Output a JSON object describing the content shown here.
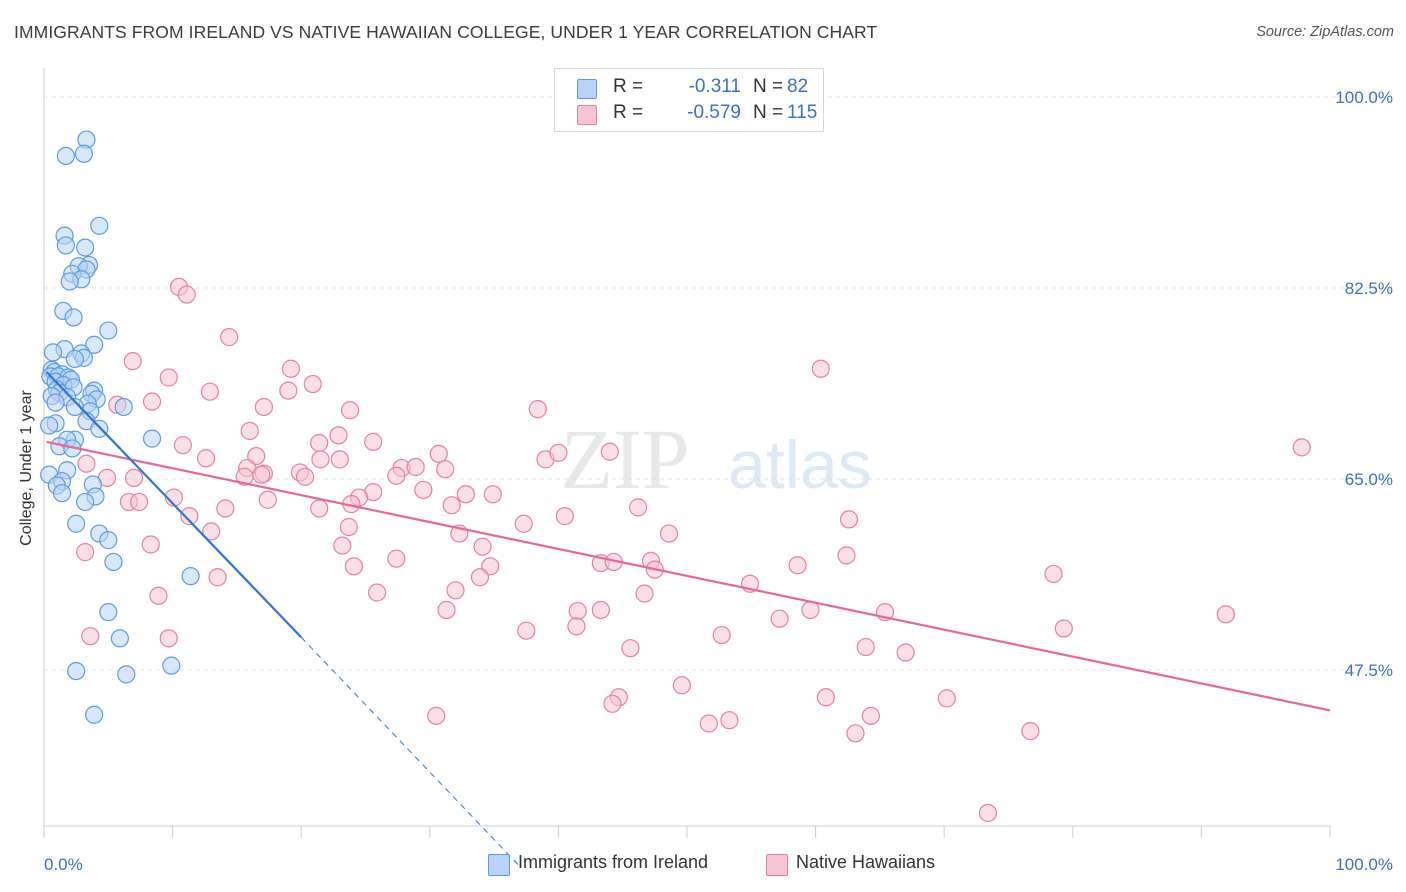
{
  "title": "IMMIGRANTS FROM IRELAND VS NATIVE HAWAIIAN COLLEGE, UNDER 1 YEAR CORRELATION CHART",
  "source": "Source: ZipAtlas.com",
  "watermark": {
    "zip": "ZIP",
    "atlas": "atlas"
  },
  "colors": {
    "blue": "#5b9be6",
    "blue_fill": "#b8d3f5",
    "blue_line": "#2f74d6",
    "pink": "#e97fa2",
    "pink_fill": "#f7c4d4",
    "pink_line": "#e4689a",
    "grid": "#e4e4e4",
    "tick_text": "#3a6fd0"
  },
  "legend": {
    "rows": [
      {
        "r_label": "R =",
        "r_value": "-0.311",
        "n_label": "N =",
        "n_value": "82",
        "color": "blue"
      },
      {
        "r_label": "R =",
        "r_value": "-0.579",
        "n_label": "N =",
        "n_value": "115",
        "color": "pink"
      }
    ]
  },
  "bottom_legend": [
    {
      "label": "Immigrants from Ireland",
      "color": "blue"
    },
    {
      "label": "Native Hawaiians",
      "color": "pink"
    }
  ],
  "chart_data": {
    "type": "scatter",
    "title": "IMMIGRANTS FROM IRELAND VS NATIVE HAWAIIAN COLLEGE, UNDER 1 YEAR CORRELATION CHART",
    "xlabel": "",
    "ylabel": "College, Under 1 year",
    "xlim": [
      0,
      100
    ],
    "ylim": [
      29.5,
      103
    ],
    "x_tick_labels": [
      "0.0%",
      "100.0%"
    ],
    "y_ticks": [
      47.5,
      65.0,
      82.5,
      100.0
    ],
    "y_tick_labels": [
      "47.5%",
      "65.0%",
      "82.5%",
      "100.0%"
    ],
    "grid": true,
    "legend_position": "top-center",
    "series": [
      {
        "name": "Immigrants from Ireland",
        "color": "blue",
        "trend": {
          "x": [
            0.2,
            20.0
          ],
          "y": [
            74.8,
            50.5
          ],
          "dashed_to": {
            "x": 37.0,
            "y": 29.5
          }
        },
        "points": [
          [
            3.3,
            96.1
          ],
          [
            3.1,
            94.8
          ],
          [
            1.7,
            94.6
          ],
          [
            4.3,
            88.2
          ],
          [
            1.6,
            87.3
          ],
          [
            1.7,
            86.4
          ],
          [
            3.2,
            86.2
          ],
          [
            3.5,
            84.6
          ],
          [
            2.7,
            84.5
          ],
          [
            3.3,
            84.2
          ],
          [
            2.2,
            83.8
          ],
          [
            2.9,
            83.3
          ],
          [
            2.0,
            83.1
          ],
          [
            1.5,
            80.4
          ],
          [
            2.3,
            79.8
          ],
          [
            5.0,
            78.6
          ],
          [
            3.9,
            77.3
          ],
          [
            1.6,
            76.9
          ],
          [
            0.7,
            76.6
          ],
          [
            2.9,
            76.5
          ],
          [
            3.1,
            76.1
          ],
          [
            2.4,
            76.0
          ],
          [
            0.6,
            75.0
          ],
          [
            0.8,
            74.8
          ],
          [
            1.4,
            74.6
          ],
          [
            0.5,
            74.4
          ],
          [
            1.1,
            74.4
          ],
          [
            1.9,
            74.3
          ],
          [
            2.1,
            74.1
          ],
          [
            0.9,
            73.9
          ],
          [
            1.5,
            73.6
          ],
          [
            2.3,
            73.4
          ],
          [
            1.0,
            73.2
          ],
          [
            3.9,
            73.1
          ],
          [
            1.2,
            72.9
          ],
          [
            0.6,
            72.6
          ],
          [
            1.8,
            72.5
          ],
          [
            3.7,
            72.8
          ],
          [
            4.1,
            72.3
          ],
          [
            0.9,
            72.0
          ],
          [
            3.4,
            71.9
          ],
          [
            2.4,
            71.6
          ],
          [
            3.6,
            71.2
          ],
          [
            6.2,
            71.6
          ],
          [
            3.3,
            70.3
          ],
          [
            0.9,
            70.1
          ],
          [
            0.4,
            69.9
          ],
          [
            4.3,
            69.6
          ],
          [
            2.4,
            68.6
          ],
          [
            1.8,
            68.6
          ],
          [
            1.2,
            68.0
          ],
          [
            8.4,
            68.7
          ],
          [
            2.2,
            67.8
          ],
          [
            1.8,
            65.8
          ],
          [
            0.4,
            65.4
          ],
          [
            1.4,
            64.8
          ],
          [
            1.0,
            64.4
          ],
          [
            3.8,
            64.5
          ],
          [
            4.0,
            63.4
          ],
          [
            1.4,
            63.7
          ],
          [
            3.2,
            62.9
          ],
          [
            2.5,
            60.9
          ],
          [
            4.3,
            60.0
          ],
          [
            5.0,
            59.4
          ],
          [
            5.4,
            57.4
          ],
          [
            11.4,
            56.1
          ],
          [
            5.0,
            52.8
          ],
          [
            5.9,
            50.4
          ],
          [
            9.9,
            47.9
          ],
          [
            2.5,
            47.4
          ],
          [
            6.4,
            47.1
          ],
          [
            3.9,
            43.4
          ]
        ]
      },
      {
        "name": "Native Hawaiians",
        "color": "pink",
        "trend": {
          "x": [
            0.2,
            100.0
          ],
          "y": [
            68.4,
            43.8
          ]
        },
        "points": [
          [
            10.5,
            82.6
          ],
          [
            11.1,
            81.9
          ],
          [
            14.4,
            78.0
          ],
          [
            6.9,
            75.8
          ],
          [
            19.2,
            75.1
          ],
          [
            60.4,
            75.1
          ],
          [
            9.7,
            74.3
          ],
          [
            20.9,
            73.7
          ],
          [
            12.9,
            73.0
          ],
          [
            19.0,
            73.1
          ],
          [
            8.4,
            72.1
          ],
          [
            5.7,
            71.8
          ],
          [
            17.1,
            71.6
          ],
          [
            23.8,
            71.3
          ],
          [
            38.4,
            71.4
          ],
          [
            16.0,
            69.4
          ],
          [
            22.9,
            69.0
          ],
          [
            10.8,
            68.1
          ],
          [
            21.4,
            68.3
          ],
          [
            25.6,
            68.4
          ],
          [
            44.0,
            67.5
          ],
          [
            97.8,
            67.9
          ],
          [
            30.7,
            67.3
          ],
          [
            16.5,
            67.1
          ],
          [
            12.6,
            66.9
          ],
          [
            21.5,
            66.8
          ],
          [
            23.0,
            66.8
          ],
          [
            39.0,
            66.8
          ],
          [
            40.0,
            67.4
          ],
          [
            3.3,
            66.4
          ],
          [
            15.8,
            66.0
          ],
          [
            27.8,
            66.0
          ],
          [
            28.9,
            66.1
          ],
          [
            31.2,
            65.9
          ],
          [
            17.1,
            65.5
          ],
          [
            19.9,
            65.6
          ],
          [
            4.9,
            65.1
          ],
          [
            7.0,
            65.1
          ],
          [
            15.6,
            65.2
          ],
          [
            16.9,
            65.4
          ],
          [
            20.3,
            65.2
          ],
          [
            27.4,
            65.3
          ],
          [
            29.5,
            64.0
          ],
          [
            25.6,
            63.8
          ],
          [
            32.8,
            63.6
          ],
          [
            34.9,
            63.6
          ],
          [
            10.1,
            63.3
          ],
          [
            17.4,
            63.1
          ],
          [
            6.6,
            62.9
          ],
          [
            7.4,
            62.9
          ],
          [
            24.5,
            63.3
          ],
          [
            23.9,
            62.7
          ],
          [
            21.4,
            62.3
          ],
          [
            14.1,
            62.3
          ],
          [
            31.7,
            62.6
          ],
          [
            46.2,
            62.4
          ],
          [
            40.5,
            61.6
          ],
          [
            11.3,
            61.6
          ],
          [
            62.6,
            61.3
          ],
          [
            37.3,
            60.9
          ],
          [
            23.7,
            60.6
          ],
          [
            13.0,
            60.2
          ],
          [
            48.6,
            60.0
          ],
          [
            32.3,
            60.0
          ],
          [
            23.2,
            58.9
          ],
          [
            34.1,
            58.8
          ],
          [
            8.3,
            59.0
          ],
          [
            3.2,
            58.3
          ],
          [
            62.4,
            58.0
          ],
          [
            27.4,
            57.7
          ],
          [
            47.2,
            57.5
          ],
          [
            43.3,
            57.3
          ],
          [
            44.3,
            57.4
          ],
          [
            34.7,
            57.0
          ],
          [
            24.1,
            57.0
          ],
          [
            47.5,
            56.7
          ],
          [
            58.6,
            57.1
          ],
          [
            78.5,
            56.3
          ],
          [
            33.9,
            56.0
          ],
          [
            13.5,
            56.0
          ],
          [
            54.9,
            55.4
          ],
          [
            32.0,
            54.8
          ],
          [
            25.9,
            54.6
          ],
          [
            46.7,
            54.5
          ],
          [
            8.9,
            54.3
          ],
          [
            31.3,
            53.0
          ],
          [
            41.5,
            52.9
          ],
          [
            43.3,
            53.0
          ],
          [
            59.6,
            53.0
          ],
          [
            65.4,
            52.8
          ],
          [
            91.9,
            52.6
          ],
          [
            57.2,
            52.2
          ],
          [
            41.4,
            51.5
          ],
          [
            79.3,
            51.3
          ],
          [
            37.5,
            51.1
          ],
          [
            52.7,
            50.7
          ],
          [
            9.7,
            50.4
          ],
          [
            3.6,
            50.6
          ],
          [
            63.9,
            49.6
          ],
          [
            45.6,
            49.5
          ],
          [
            67.0,
            49.1
          ],
          [
            49.6,
            46.1
          ],
          [
            44.7,
            45.0
          ],
          [
            44.2,
            44.4
          ],
          [
            60.8,
            45.0
          ],
          [
            70.2,
            44.9
          ],
          [
            30.5,
            43.3
          ],
          [
            64.3,
            43.3
          ],
          [
            51.7,
            42.6
          ],
          [
            53.3,
            42.9
          ],
          [
            63.1,
            41.7
          ],
          [
            76.7,
            41.9
          ],
          [
            73.4,
            34.4
          ]
        ]
      }
    ]
  }
}
